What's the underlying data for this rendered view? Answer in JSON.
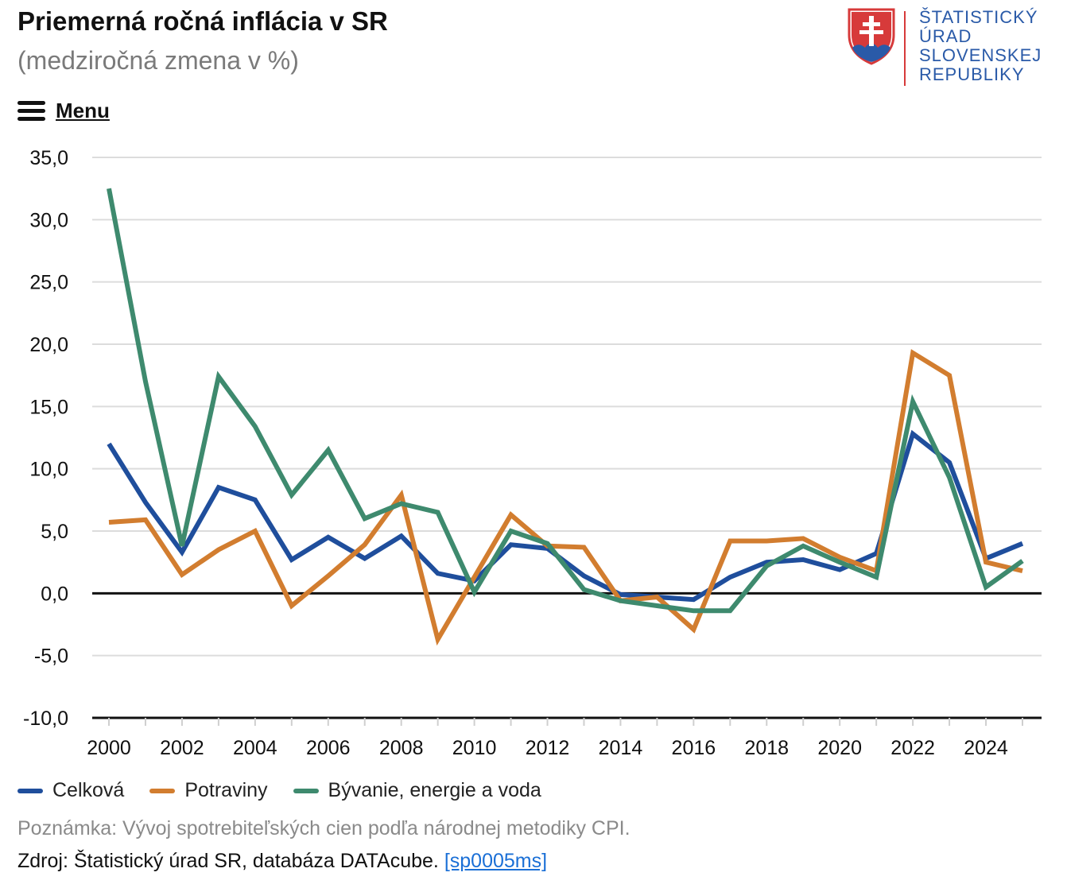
{
  "header": {
    "title": "Priemerná ročná inflácia v SR",
    "subtitle": "(medziročná zmena v %)"
  },
  "logo": {
    "line1": "ŠTATISTICKÝ",
    "line2": "ÚRAD",
    "line3": "SLOVENSKEJ",
    "line4": "REPUBLIKY",
    "color": "#2a5aa8"
  },
  "menu": {
    "label": "Menu",
    "icon": "hamburger-icon"
  },
  "chart_data": {
    "type": "line",
    "x": [
      2000,
      2001,
      2002,
      2003,
      2004,
      2005,
      2006,
      2007,
      2008,
      2009,
      2010,
      2011,
      2012,
      2013,
      2014,
      2015,
      2016,
      2017,
      2018,
      2019,
      2020,
      2021,
      2022,
      2023,
      2024,
      2025
    ],
    "x_tick_labels": [
      "2000",
      "2002",
      "2004",
      "2006",
      "2008",
      "2010",
      "2012",
      "2014",
      "2016",
      "2018",
      "2020",
      "2022",
      "2024"
    ],
    "y_tick_labels": [
      "35,0",
      "30,0",
      "25,0",
      "20,0",
      "15,0",
      "10,0",
      "5,0",
      "0,0",
      "-5,0",
      "-10,0"
    ],
    "ylim": [
      -10,
      35
    ],
    "grid": true,
    "legend_position": "bottom-left",
    "series": [
      {
        "name": "Celková",
        "color": "#1f4e9c",
        "values": [
          12.0,
          7.3,
          3.3,
          8.5,
          7.5,
          2.7,
          4.5,
          2.8,
          4.6,
          1.6,
          1.0,
          3.9,
          3.6,
          1.4,
          -0.1,
          -0.3,
          -0.5,
          1.3,
          2.5,
          2.7,
          1.9,
          3.2,
          12.8,
          10.5,
          2.8,
          4.0
        ]
      },
      {
        "name": "Potraviny",
        "color": "#d27d2f",
        "values": [
          5.7,
          5.9,
          1.5,
          3.5,
          5.0,
          -1.0,
          1.4,
          3.9,
          7.9,
          -3.7,
          1.3,
          6.3,
          3.8,
          3.7,
          -0.6,
          -0.3,
          -2.9,
          4.2,
          4.2,
          4.4,
          2.9,
          1.8,
          19.3,
          17.5,
          2.5,
          1.8
        ]
      },
      {
        "name": "Bývanie, energie a voda",
        "color": "#3e8a6e",
        "values": [
          32.5,
          17.0,
          3.8,
          17.4,
          13.4,
          7.9,
          11.5,
          6.0,
          7.2,
          6.5,
          0.1,
          5.0,
          4.0,
          0.3,
          -0.6,
          -1.0,
          -1.4,
          -1.4,
          2.2,
          3.8,
          2.5,
          1.3,
          15.4,
          9.3,
          0.5,
          2.6
        ]
      }
    ]
  },
  "footer": {
    "note": "Poznámka: Vývoj spotrebiteľských cien podľa národnej metodiky CPI.",
    "source_prefix": "Zdroj: Štatistický úrad SR, databáza DATAcube.",
    "source_link": "[sp0005ms]"
  }
}
